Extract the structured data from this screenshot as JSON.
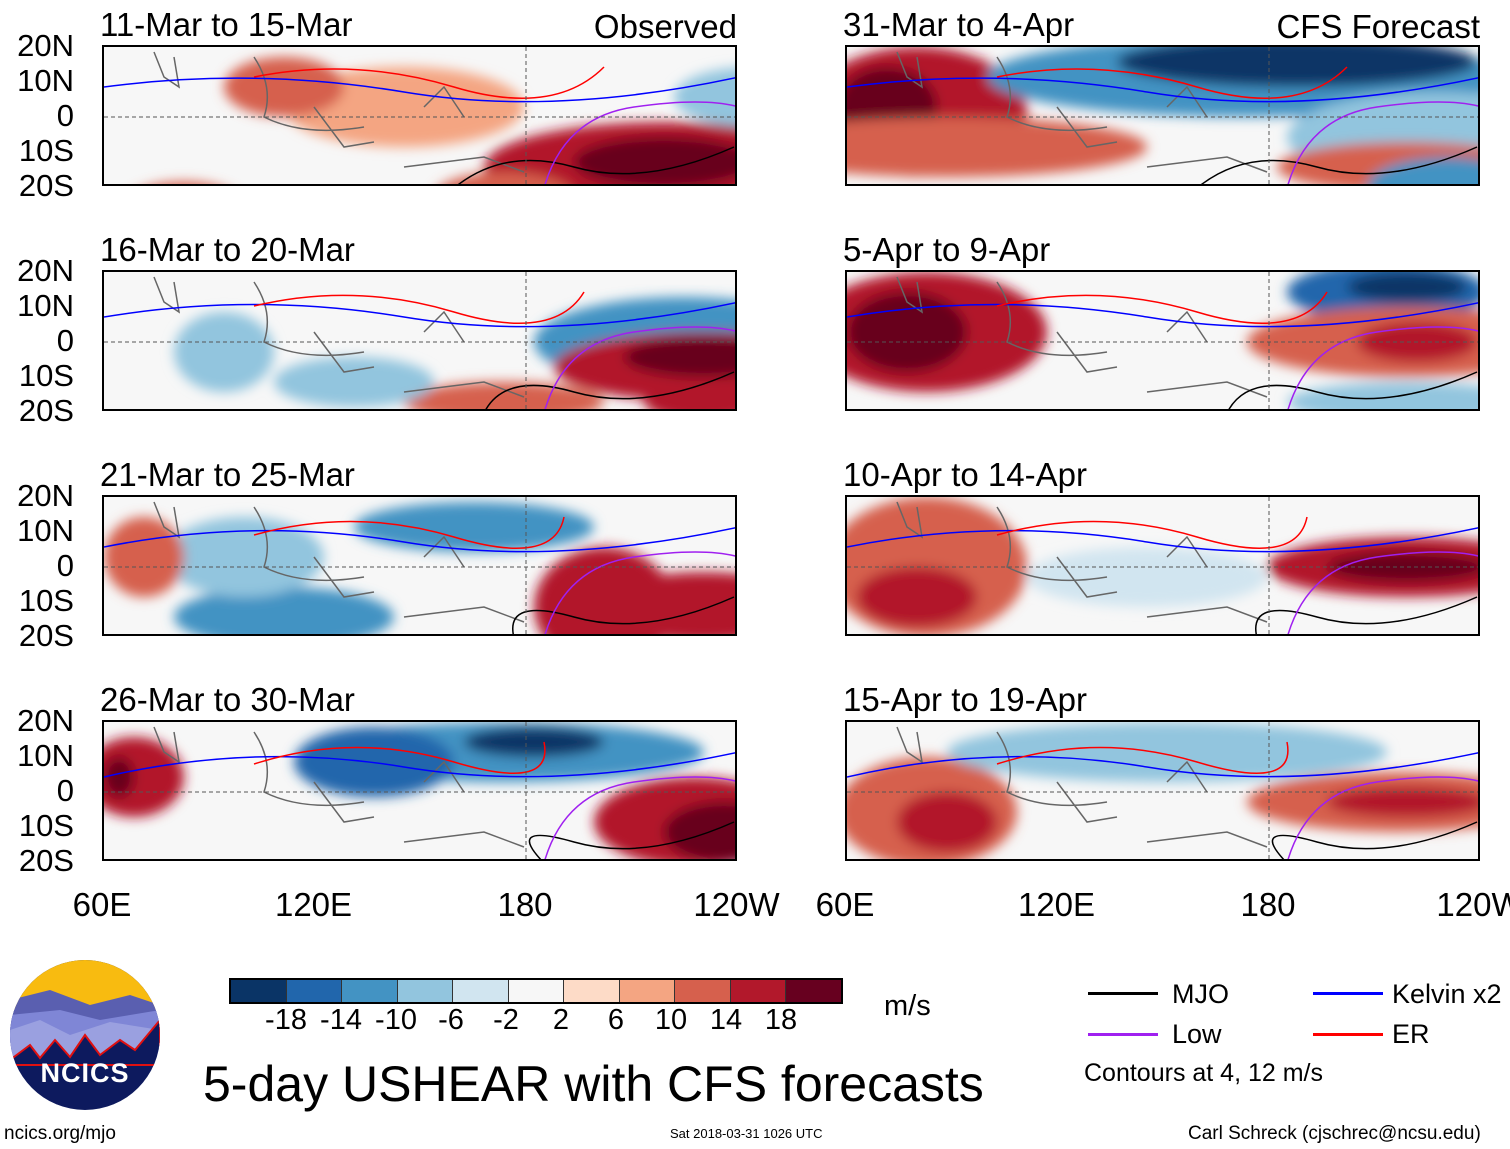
{
  "panels": {
    "left": [
      {
        "title": "11-Mar to 15-Mar",
        "tag": "Observed"
      },
      {
        "title": "16-Mar to 20-Mar"
      },
      {
        "title": "21-Mar to 25-Mar"
      },
      {
        "title": "26-Mar to 30-Mar"
      }
    ],
    "right": [
      {
        "title": "31-Mar to 4-Apr",
        "tag": "CFS Forecast"
      },
      {
        "title": "5-Apr to 9-Apr"
      },
      {
        "title": "10-Apr to 14-Apr"
      },
      {
        "title": "15-Apr to 19-Apr"
      }
    ]
  },
  "lat_labels": [
    "20N",
    "10N",
    "0",
    "10S",
    "20S"
  ],
  "lon_labels": [
    "60E",
    "120E",
    "180",
    "120W"
  ],
  "colorbar": {
    "colors": [
      "#0a3466",
      "#2166ac",
      "#4393c3",
      "#92c5de",
      "#d1e5f0",
      "#f7f7f7",
      "#fddbc7",
      "#f4a582",
      "#d6604d",
      "#b2182b",
      "#67001f"
    ],
    "ticks": [
      "-18",
      "-14",
      "-10",
      "-6",
      "-2",
      "2",
      "6",
      "10",
      "14",
      "18"
    ],
    "units": "m/s"
  },
  "title": "5-day USHEAR with CFS forecasts",
  "legend": {
    "items": [
      {
        "label": "MJO",
        "color": "#000000"
      },
      {
        "label": "Kelvin x2",
        "color": "#0000ff"
      },
      {
        "label": "Low",
        "color": "#a020f0"
      },
      {
        "label": "ER",
        "color": "#ff0000"
      }
    ],
    "note": "Contours at 4, 12 m/s"
  },
  "logo": {
    "text": "NCICS"
  },
  "footer": {
    "url": "ncics.org/mjo",
    "timestamp": "Sat 2018-03-31 1026 UTC",
    "author": "Carl Schreck (cjschrec@ncsu.edu)"
  }
}
